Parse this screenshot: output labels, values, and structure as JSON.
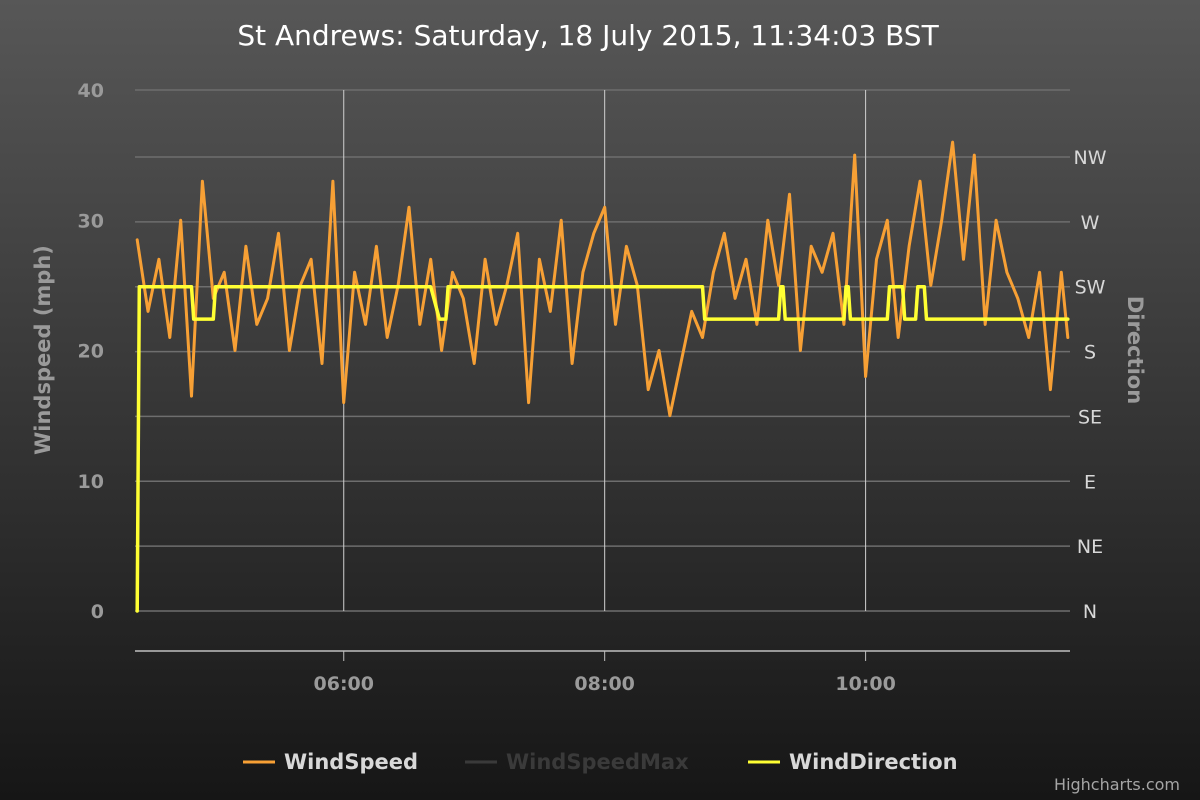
{
  "chart_data": {
    "type": "line",
    "title": "St Andrews: Saturday, 18 July 2015, 11:34:03 BST",
    "ylabel": "Windspeed (mph)",
    "ylabel_right": "Direction",
    "ylim": [
      0,
      40
    ],
    "yticks": [
      "0",
      "10",
      "20",
      "30",
      "40"
    ],
    "xlim": [
      "04:24",
      "11:34"
    ],
    "xticks": [
      "06:00",
      "08:00",
      "10:00"
    ],
    "direction_ticks": [
      "N",
      "NE",
      "E",
      "SE",
      "S",
      "SW",
      "W",
      "NW"
    ],
    "grid": true,
    "legend_position": "bottom",
    "series": [
      {
        "name": "WindSpeed",
        "color": "#f7a035",
        "axis": "left",
        "x": [
          "04:25",
          "04:30",
          "04:35",
          "04:40",
          "04:45",
          "04:50",
          "04:55",
          "05:00",
          "05:05",
          "05:10",
          "05:15",
          "05:20",
          "05:25",
          "05:30",
          "05:35",
          "05:40",
          "05:45",
          "05:50",
          "05:55",
          "06:00",
          "06:05",
          "06:10",
          "06:15",
          "06:20",
          "06:25",
          "06:30",
          "06:35",
          "06:40",
          "06:45",
          "06:50",
          "06:55",
          "07:00",
          "07:05",
          "07:10",
          "07:15",
          "07:20",
          "07:25",
          "07:30",
          "07:35",
          "07:40",
          "07:45",
          "07:50",
          "07:55",
          "08:00",
          "08:05",
          "08:10",
          "08:15",
          "08:20",
          "08:25",
          "08:30",
          "08:35",
          "08:40",
          "08:45",
          "08:50",
          "08:55",
          "09:00",
          "09:05",
          "09:10",
          "09:15",
          "09:20",
          "09:25",
          "09:30",
          "09:35",
          "09:40",
          "09:45",
          "09:50",
          "09:55",
          "10:00",
          "10:05",
          "10:10",
          "10:15",
          "10:20",
          "10:25",
          "10:30",
          "10:35",
          "10:40",
          "10:45",
          "10:50",
          "10:55",
          "11:00",
          "11:05",
          "11:10",
          "11:15",
          "11:20",
          "11:25",
          "11:30",
          "11:33"
        ],
        "values": [
          28.5,
          23,
          27,
          21,
          30,
          16.5,
          33,
          24,
          26,
          20,
          28,
          22,
          24,
          29,
          20,
          25,
          27,
          19,
          33,
          16,
          26,
          22,
          28,
          21,
          25,
          31,
          22,
          27,
          20,
          26,
          24,
          19,
          27,
          22,
          25,
          29,
          16,
          27,
          23,
          30,
          19,
          26,
          29,
          31,
          22,
          28,
          25,
          17,
          20,
          15,
          19,
          23,
          21,
          26,
          29,
          24,
          27,
          22,
          30,
          25,
          32,
          20,
          28,
          26,
          29,
          22,
          35,
          18,
          27,
          30,
          21,
          28,
          33,
          25,
          30,
          36,
          27,
          35,
          22,
          30,
          26,
          24,
          21,
          26,
          17,
          26,
          21
        ]
      },
      {
        "name": "WindSpeedMax",
        "color": "#3a3a3a",
        "axis": "left",
        "hidden": true,
        "x": [],
        "values": []
      },
      {
        "name": "WindDirection",
        "color": "#ffff33",
        "axis": "right",
        "x": [
          "04:25",
          "04:26",
          "04:50",
          "04:51",
          "05:00",
          "05:01",
          "06:40",
          "06:44",
          "06:47",
          "06:48",
          "08:45",
          "08:46",
          "09:20",
          "09:21",
          "09:22",
          "09:23",
          "09:50",
          "09:51",
          "09:52",
          "09:53",
          "10:10",
          "10:11",
          "10:17",
          "10:18",
          "10:23",
          "10:24",
          "10:27",
          "10:28",
          "11:33"
        ],
        "values": [
          "N",
          "SW",
          "SW",
          "SSW",
          "SSW",
          "SW",
          "SW",
          "SSW",
          "SSW",
          "SW",
          "SW",
          "SSW",
          "SSW",
          "SW",
          "SW",
          "SSW",
          "SSW",
          "SW",
          "SW",
          "SSW",
          "SSW",
          "SW",
          "SW",
          "SSW",
          "SSW",
          "SW",
          "SW",
          "SSW",
          "SSW"
        ]
      }
    ],
    "credits": "Highcharts.com"
  }
}
